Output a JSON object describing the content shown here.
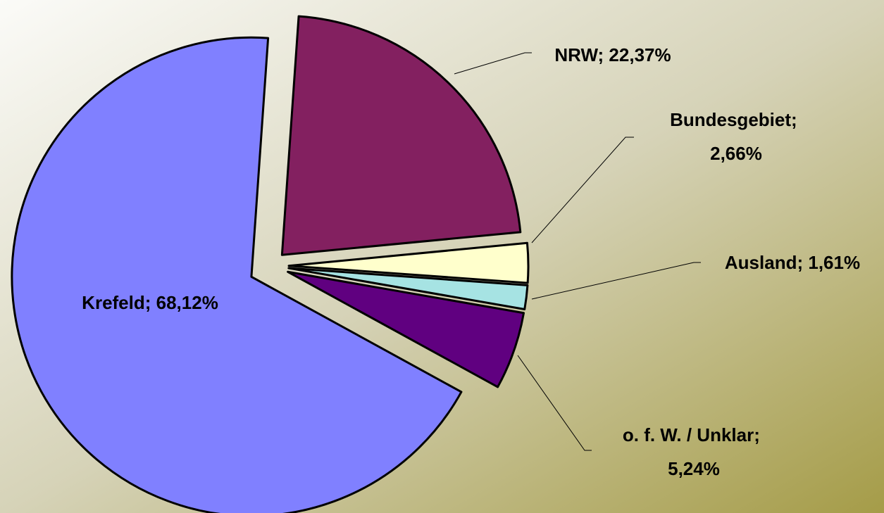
{
  "chart_data": {
    "type": "pie",
    "categories": [
      "NRW",
      "Bundesgebiet",
      "Ausland",
      "o. f. W. / Unklar",
      "Krefeld"
    ],
    "values": [
      22.37,
      2.66,
      1.61,
      5.24,
      68.12
    ],
    "value_labels": [
      "22,37%",
      "2,66%",
      "1,61%",
      "5,24%",
      "68,12%"
    ],
    "separator": "; ",
    "colors": [
      "#832060",
      "#ffffcc",
      "#a6e3e3",
      "#600080",
      "#8080ff"
    ]
  }
}
